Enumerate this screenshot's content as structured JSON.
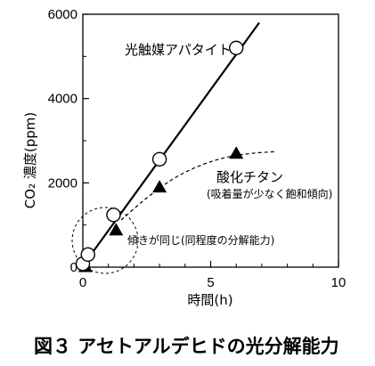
{
  "chart_data": {
    "type": "scatter",
    "caption": "図３ アセトアルデヒドの光分解能力",
    "xlabel": "時間(h)",
    "ylabel": "CO₂ 濃度(ppm)",
    "xlim": [
      0,
      10
    ],
    "ylim": [
      0,
      6000
    ],
    "x_ticks": [
      "0",
      "5",
      "10"
    ],
    "y_ticks": [
      "0",
      "2000",
      "4000",
      "6000"
    ],
    "grid": false,
    "series": [
      {
        "name": "光触媒アパタイト",
        "marker": "circle",
        "color": "#000000",
        "points": [
          {
            "x": 0.0,
            "y": 80
          },
          {
            "x": 0.2,
            "y": 300
          },
          {
            "x": 1.2,
            "y": 1240
          },
          {
            "x": 3.0,
            "y": 2560
          },
          {
            "x": 6.0,
            "y": 5200
          }
        ],
        "trend": [
          [
            0.2,
            200
          ],
          [
            6.9,
            5800
          ]
        ]
      },
      {
        "name": "酸化チタン",
        "note": "(吸着量が少なく飽和傾向)",
        "marker": "triangle",
        "color": "#000000",
        "points": [
          {
            "x": 0.1,
            "y": 10
          },
          {
            "x": 1.3,
            "y": 880
          },
          {
            "x": 3.0,
            "y": 1900
          },
          {
            "x": 6.0,
            "y": 2700
          }
        ],
        "trend": [
          [
            1.5,
            1120
          ],
          [
            2.5,
            1650
          ],
          [
            3.5,
            2100
          ],
          [
            4.5,
            2400
          ],
          [
            5.5,
            2600
          ],
          [
            6.5,
            2700
          ],
          [
            7.5,
            2740
          ]
        ]
      }
    ],
    "annotations": [
      {
        "text": "傾きが同じ(同程度の分解能力)"
      }
    ]
  }
}
